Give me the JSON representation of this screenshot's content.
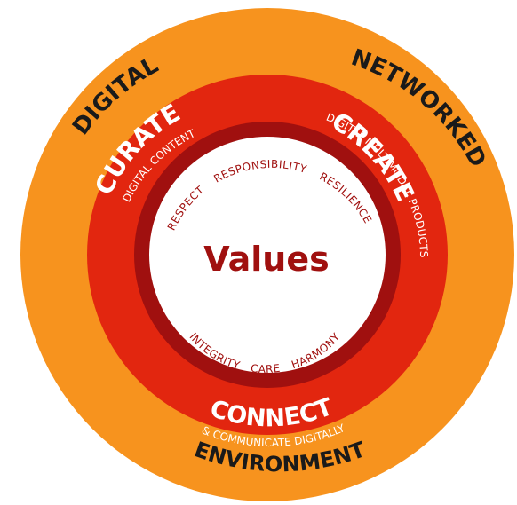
{
  "colors": {
    "outer_ring": "#F7931E",
    "middle_ring": "#E2260F",
    "inner_border": "#A0100F",
    "center_fill": "#FFFFFF",
    "outer_text": "#1A1A1A",
    "white_text": "#FFFFFF",
    "values_text": "#A0100F"
  },
  "outer_ring": {
    "labels": {
      "digital": "DIGITAL",
      "networked": "NETWORKED",
      "environment": "ENVIRONMENT"
    }
  },
  "middle_ring": {
    "curate": {
      "label": "CURATE",
      "sub": "DIGITAL CONTENT"
    },
    "create": {
      "label": "CREATE",
      "sub": "DIGITAL MULTIMODAL PRODUCTS"
    },
    "connect": {
      "label": "CONNECT",
      "sub": "& COMMUNICATE DIGITALLY"
    }
  },
  "center": {
    "title": "Values",
    "values_top": [
      "RESPECT",
      "RESPONSIBILITY",
      "RESILIENCE"
    ],
    "values_bottom": [
      "INTEGRITY",
      "CARE",
      "HARMONY"
    ]
  }
}
